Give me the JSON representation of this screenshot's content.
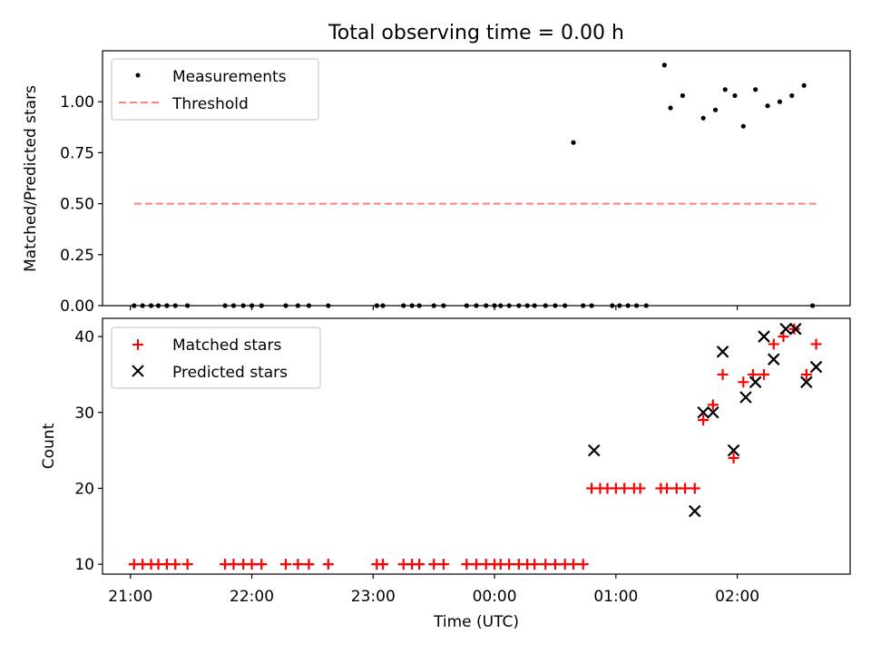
{
  "title": "Total observing time = 0.00 h",
  "chart_data": [
    {
      "type": "scatter",
      "ylabel": "Matched/Predicted stars",
      "ylim": [
        0.0,
        1.25
      ],
      "yticks": [
        0.0,
        0.25,
        0.5,
        0.75,
        1.0
      ],
      "ytick_labels": [
        "0.00",
        "0.25",
        "0.50",
        "0.75",
        "1.00"
      ],
      "xlim": [
        20.77,
        26.93
      ],
      "legend": {
        "placement": "upper-left",
        "entries": [
          "Measurements",
          "Threshold"
        ]
      },
      "series": [
        {
          "name": "Measurements",
          "marker": "dot",
          "color": "#000000",
          "x": [
            21.03,
            21.1,
            21.17,
            21.23,
            21.3,
            21.37,
            21.47,
            21.78,
            21.85,
            21.93,
            22.0,
            22.08,
            22.28,
            22.38,
            22.47,
            22.63,
            23.03,
            23.08,
            23.25,
            23.32,
            23.38,
            23.5,
            23.58,
            23.77,
            23.85,
            23.93,
            24.0,
            24.05,
            24.12,
            24.2,
            24.27,
            24.33,
            24.42,
            24.5,
            24.58,
            24.65,
            24.73,
            24.8,
            24.97,
            25.03,
            25.1,
            25.17,
            25.25,
            25.4,
            25.45,
            25.55,
            25.72,
            25.82,
            25.9,
            25.98,
            26.05,
            26.15,
            26.25,
            26.35,
            26.45,
            26.55,
            26.62
          ],
          "y": [
            0,
            0,
            0,
            0,
            0,
            0,
            0,
            0,
            0,
            0,
            0,
            0,
            0,
            0,
            0,
            0,
            0,
            0,
            0,
            0,
            0,
            0,
            0,
            0,
            0,
            0,
            0,
            0,
            0,
            0,
            0,
            0,
            0,
            0,
            0,
            0.8,
            0,
            0,
            0,
            0,
            0,
            0,
            0,
            1.18,
            0.97,
            1.03,
            0.92,
            0.96,
            1.06,
            1.03,
            0.88,
            1.06,
            0.98,
            1.0,
            1.03,
            1.08,
            0
          ]
        },
        {
          "name": "Threshold",
          "style": "dashed",
          "color": "#ff7f7f",
          "x": [
            21.03,
            26.65
          ],
          "y": [
            0.5,
            0.5
          ]
        }
      ]
    },
    {
      "type": "scatter",
      "ylabel": "Count",
      "xlabel": "Time (UTC)",
      "ylim": [
        8.7,
        42.4
      ],
      "yticks": [
        10,
        20,
        30,
        40
      ],
      "ytick_labels": [
        "10",
        "20",
        "30",
        "40"
      ],
      "xlim": [
        20.77,
        26.93
      ],
      "xticks": [
        21,
        22,
        23,
        24,
        25,
        26
      ],
      "xtick_labels": [
        "21:00",
        "22:00",
        "23:00",
        "00:00",
        "01:00",
        "02:00"
      ],
      "legend": {
        "placement": "upper-left",
        "entries": [
          "Matched stars",
          "Predicted stars"
        ]
      },
      "series": [
        {
          "name": "Matched stars",
          "marker": "plus",
          "color": "#ff0000",
          "x": [
            21.03,
            21.1,
            21.17,
            21.23,
            21.3,
            21.37,
            21.47,
            21.78,
            21.85,
            21.93,
            22.0,
            22.08,
            22.28,
            22.38,
            22.47,
            22.63,
            23.03,
            23.08,
            23.25,
            23.32,
            23.38,
            23.5,
            23.58,
            23.77,
            23.85,
            23.93,
            24.0,
            24.05,
            24.12,
            24.2,
            24.27,
            24.33,
            24.42,
            24.5,
            24.58,
            24.65,
            24.73,
            24.8,
            24.87,
            24.93,
            25.0,
            25.07,
            25.15,
            25.2,
            25.37,
            25.42,
            25.5,
            25.57,
            25.65,
            25.72,
            25.8,
            25.88,
            25.97,
            26.05,
            26.13,
            26.22,
            26.3,
            26.38,
            26.47,
            26.57,
            26.65
          ],
          "y": [
            10,
            10,
            10,
            10,
            10,
            10,
            10,
            10,
            10,
            10,
            10,
            10,
            10,
            10,
            10,
            10,
            10,
            10,
            10,
            10,
            10,
            10,
            10,
            10,
            10,
            10,
            10,
            10,
            10,
            10,
            10,
            10,
            10,
            10,
            10,
            10,
            10,
            20,
            20,
            20,
            20,
            20,
            20,
            20,
            20,
            20,
            20,
            20,
            20,
            29,
            31,
            35,
            24,
            34,
            35,
            35,
            39,
            40,
            41,
            35,
            39
          ]
        },
        {
          "name": "Predicted stars",
          "marker": "x",
          "color": "#000000",
          "x": [
            24.82,
            25.65,
            25.72,
            25.8,
            25.88,
            25.97,
            26.07,
            26.15,
            26.22,
            26.3,
            26.4,
            26.48,
            26.57,
            26.65
          ],
          "y": [
            25,
            17,
            30,
            30,
            38,
            25,
            32,
            34,
            40,
            37,
            41,
            41,
            34,
            36
          ]
        }
      ]
    }
  ]
}
